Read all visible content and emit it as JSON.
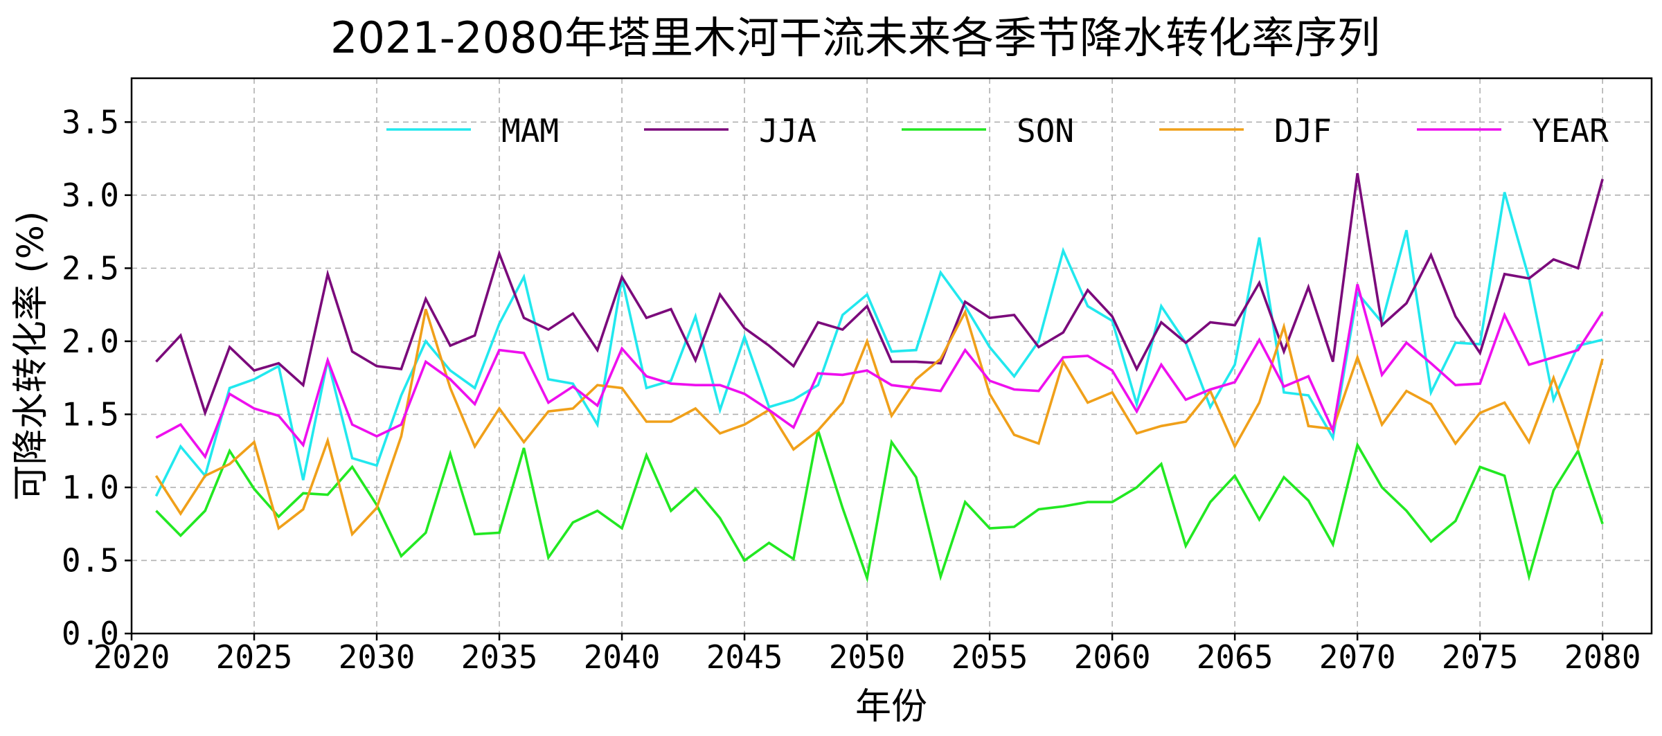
{
  "chart_data": {
    "type": "line",
    "title": "2021-2080年塔里木河干流未来各季节降水转化率序列",
    "xlabel": "年份",
    "ylabel": "可降水转化率 (%)",
    "xlim": [
      2020,
      2082
    ],
    "ylim": [
      0.0,
      3.8
    ],
    "grid": true,
    "legend_position": "top-right",
    "x_ticks": [
      2020,
      2025,
      2030,
      2035,
      2040,
      2045,
      2050,
      2055,
      2060,
      2065,
      2070,
      2075,
      2080
    ],
    "x_tick_labels": [
      "2020",
      "2025",
      "2030",
      "2035",
      "2040",
      "2045",
      "2050",
      "2055",
      "2060",
      "2065",
      "2070",
      "2075",
      "2080"
    ],
    "y_ticks": [
      0.0,
      0.5,
      1.0,
      1.5,
      2.0,
      2.5,
      3.0,
      3.5
    ],
    "y_tick_labels": [
      "0.0",
      "0.5",
      "1.0",
      "1.5",
      "2.0",
      "2.5",
      "3.0",
      "3.5"
    ],
    "x": [
      2021,
      2022,
      2023,
      2024,
      2025,
      2026,
      2027,
      2028,
      2029,
      2030,
      2031,
      2032,
      2033,
      2034,
      2035,
      2036,
      2037,
      2038,
      2039,
      2040,
      2041,
      2042,
      2043,
      2044,
      2045,
      2046,
      2047,
      2048,
      2049,
      2050,
      2051,
      2052,
      2053,
      2054,
      2055,
      2056,
      2057,
      2058,
      2059,
      2060,
      2061,
      2062,
      2063,
      2064,
      2065,
      2066,
      2067,
      2068,
      2069,
      2070,
      2071,
      2072,
      2073,
      2074,
      2075,
      2076,
      2077,
      2078,
      2079,
      2080
    ],
    "series": [
      {
        "name": "MAM",
        "color": "#22e8ee",
        "values": [
          0.94,
          1.28,
          1.08,
          1.68,
          1.74,
          1.83,
          1.05,
          1.87,
          1.2,
          1.15,
          1.63,
          2.0,
          1.8,
          1.68,
          2.12,
          2.44,
          1.74,
          1.71,
          1.43,
          2.43,
          1.68,
          1.73,
          2.17,
          1.53,
          2.03,
          1.55,
          1.6,
          1.7,
          2.18,
          2.32,
          1.93,
          1.94,
          2.47,
          2.24,
          1.96,
          1.76,
          2.0,
          2.62,
          2.24,
          2.14,
          1.57,
          2.24,
          1.99,
          1.55,
          1.84,
          2.71,
          1.65,
          1.63,
          1.34,
          2.33,
          2.13,
          2.76,
          1.65,
          1.99,
          1.98,
          3.02,
          2.43,
          1.6,
          1.97,
          2.01
        ]
      },
      {
        "name": "JJA",
        "color": "#7b0a7b",
        "values": [
          1.86,
          2.04,
          1.51,
          1.96,
          1.8,
          1.85,
          1.7,
          2.46,
          1.93,
          1.83,
          1.81,
          2.29,
          1.97,
          2.04,
          2.6,
          2.16,
          2.08,
          2.19,
          1.94,
          2.44,
          2.16,
          2.22,
          1.87,
          2.32,
          2.09,
          1.97,
          1.83,
          2.13,
          2.08,
          2.24,
          1.86,
          1.86,
          1.85,
          2.27,
          2.16,
          2.18,
          1.96,
          2.06,
          2.35,
          2.17,
          1.81,
          2.13,
          1.99,
          2.13,
          2.11,
          2.4,
          1.93,
          2.37,
          1.86,
          3.15,
          2.11,
          2.26,
          2.59,
          2.17,
          1.92,
          2.46,
          2.43,
          2.56,
          2.5,
          3.11
        ]
      },
      {
        "name": "SON",
        "color": "#22e822",
        "values": [
          0.84,
          0.67,
          0.84,
          1.25,
          0.99,
          0.8,
          0.96,
          0.95,
          1.14,
          0.88,
          0.53,
          0.69,
          1.23,
          0.68,
          0.69,
          1.27,
          0.52,
          0.76,
          0.84,
          0.72,
          1.22,
          0.84,
          0.99,
          0.79,
          0.5,
          0.62,
          0.51,
          1.39,
          0.86,
          0.38,
          1.31,
          1.07,
          0.39,
          0.9,
          0.72,
          0.73,
          0.85,
          0.87,
          0.9,
          0.9,
          1.0,
          1.16,
          0.6,
          0.9,
          1.08,
          0.78,
          1.07,
          0.91,
          0.61,
          1.29,
          1.0,
          0.84,
          0.63,
          0.77,
          1.14,
          1.08,
          0.39,
          0.98,
          1.25,
          0.75
        ]
      },
      {
        "name": "DJF",
        "color": "#f0a01a",
        "values": [
          1.08,
          0.82,
          1.08,
          1.16,
          1.31,
          0.72,
          0.85,
          1.32,
          0.68,
          0.86,
          1.35,
          2.22,
          1.68,
          1.28,
          1.54,
          1.31,
          1.52,
          1.54,
          1.7,
          1.68,
          1.45,
          1.45,
          1.54,
          1.37,
          1.43,
          1.53,
          1.26,
          1.39,
          1.58,
          2.0,
          1.49,
          1.74,
          1.88,
          2.2,
          1.64,
          1.36,
          1.3,
          1.86,
          1.58,
          1.65,
          1.37,
          1.42,
          1.45,
          1.66,
          1.28,
          1.58,
          2.1,
          1.42,
          1.4,
          1.89,
          1.43,
          1.66,
          1.57,
          1.3,
          1.51,
          1.58,
          1.31,
          1.75,
          1.27,
          1.88
        ]
      },
      {
        "name": "YEAR",
        "color": "#ee10ee",
        "values": [
          1.34,
          1.43,
          1.21,
          1.64,
          1.54,
          1.49,
          1.29,
          1.87,
          1.43,
          1.35,
          1.43,
          1.86,
          1.74,
          1.57,
          1.94,
          1.92,
          1.58,
          1.69,
          1.56,
          1.95,
          1.76,
          1.71,
          1.7,
          1.7,
          1.64,
          1.53,
          1.41,
          1.78,
          1.77,
          1.8,
          1.7,
          1.68,
          1.66,
          1.94,
          1.73,
          1.67,
          1.66,
          1.89,
          1.9,
          1.8,
          1.52,
          1.84,
          1.6,
          1.67,
          1.72,
          2.01,
          1.69,
          1.76,
          1.39,
          2.39,
          1.77,
          1.99,
          1.85,
          1.7,
          1.71,
          2.18,
          1.84,
          1.89,
          1.94,
          2.2
        ]
      }
    ]
  }
}
